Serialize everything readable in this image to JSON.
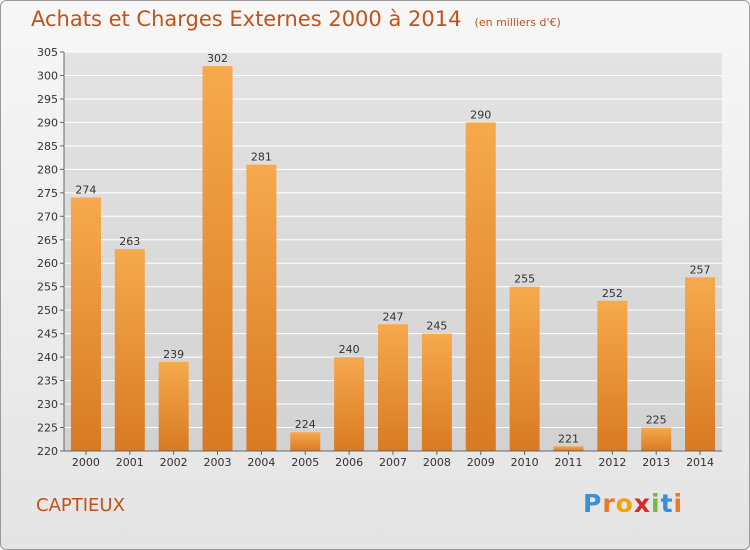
{
  "header": {
    "title": "Achats et Charges Externes 2000 à 2014",
    "subtitle": "(en milliers d'€)"
  },
  "footer": {
    "city": "CAPTIEUX",
    "logo_letters": [
      "P",
      "r",
      "o",
      "x",
      "i",
      "t",
      "i"
    ],
    "logo_colors": [
      "#3b8fd4",
      "#e8792a",
      "#f2a400",
      "#d62b2b",
      "#74b843",
      "#3b8fd4",
      "#e8792a"
    ]
  },
  "colors": {
    "bar_light": "#f6a94d",
    "bar_dark": "#d87a22",
    "grid": "#ffffff",
    "axis": "#666666",
    "text": "#333333",
    "accent": "#c0531c"
  },
  "chart_data": {
    "type": "bar",
    "categories": [
      "2000",
      "2001",
      "2002",
      "2003",
      "2004",
      "2005",
      "2006",
      "2007",
      "2008",
      "2009",
      "2010",
      "2011",
      "2012",
      "2013",
      "2014"
    ],
    "values": [
      274,
      263,
      239,
      302,
      281,
      224,
      240,
      247,
      245,
      290,
      255,
      221,
      252,
      225,
      257
    ],
    "title": "Achats et Charges Externes 2000 à 2014",
    "subtitle": "(en milliers d'€)",
    "xlabel": "",
    "ylabel": "",
    "ylim": [
      220,
      305
    ],
    "yticks": [
      220,
      225,
      230,
      235,
      240,
      245,
      250,
      255,
      260,
      265,
      270,
      275,
      280,
      285,
      290,
      295,
      300,
      305
    ],
    "grid": true,
    "legend": "none"
  }
}
